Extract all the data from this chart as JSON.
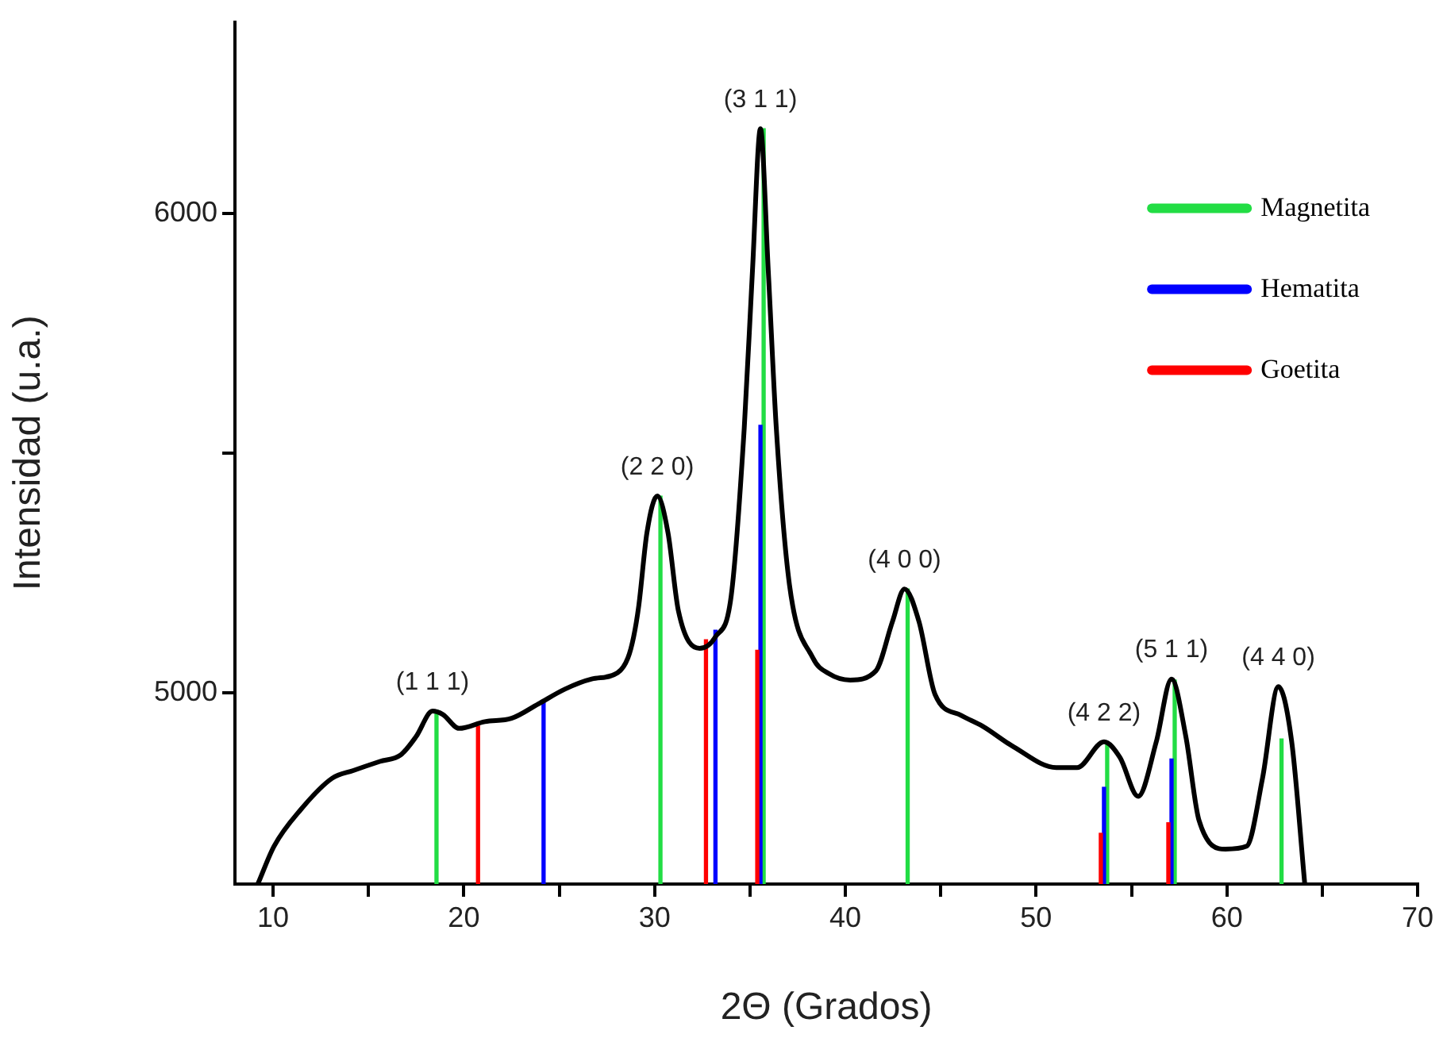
{
  "chart_data": {
    "type": "line",
    "xlabel": "2Θ (Grados)",
    "ylabel": "Intensidad (u.a.)",
    "xlim": [
      8,
      70
    ],
    "xticks": [
      10,
      {
        "value": 15,
        "label": null
      },
      20,
      {
        "value": 25,
        "label": null
      },
      30,
      {
        "value": 35,
        "label": null
      },
      40,
      {
        "value": 45,
        "label": null
      },
      50,
      {
        "value": 55,
        "label": null
      },
      60,
      {
        "value": 65,
        "label": null
      },
      70
    ],
    "ylim": [
      4600,
      6400
    ],
    "yticks": [
      5000,
      {
        "value": 5500,
        "label": null
      },
      6000
    ],
    "grid": false,
    "legend": "top right",
    "marker": "none",
    "line_style": "solid",
    "series": [
      {
        "color": "#000000",
        "x": [
          9.22,
          10.05,
          11.44,
          13.1,
          14.2,
          15.6,
          16.7,
          17.5,
          18.36,
          18.9,
          19.75,
          21.1,
          22.5,
          23.9,
          25.3,
          26.7,
          28.06,
          28.6,
          28.9,
          29.17,
          29.6,
          30.14,
          30.7,
          31.25,
          32.36,
          33.19,
          34.02,
          34.7,
          35.13,
          35.55,
          35.96,
          36.38,
          37.07,
          38.3,
          39.15,
          40.26,
          41.6,
          42.47,
          43.1,
          43.86,
          44.7,
          46.08,
          47.18,
          48.84,
          51.06,
          52.15,
          53.56,
          54.4,
          55.35,
          56.3,
          57.1,
          57.85,
          58.54,
          59.93,
          61.04,
          61.87,
          62.7,
          63.4,
          64.08
        ],
        "values": [
          4602,
          4679,
          4755,
          4821,
          4837,
          4856,
          4870,
          4908,
          4961,
          4954,
          4925,
          4939,
          4946,
          4976,
          5007,
          5028,
          5041,
          5072,
          5116,
          5181,
          5334,
          5410,
          5334,
          5170,
          5092,
          5116,
          5203,
          5552,
          5880,
          6177,
          5880,
          5552,
          5225,
          5072,
          5039,
          5026,
          5045,
          5148,
          5216,
          5148,
          4996,
          4952,
          4930,
          4886,
          4843,
          4843,
          4897,
          4864,
          4783,
          4897,
          5028,
          4908,
          4733,
          4673,
          4679,
          4821,
          5012,
          4897,
          4602
        ]
      },
      {
        "type": "bar",
        "name": "Magnetita",
        "color": "#22dd44",
        "x": [
          18.4,
          30.14,
          35.55,
          43.1,
          53.56,
          57.1,
          62.7
        ],
        "values": [
          4963,
          5410,
          6177,
          5216,
          4892,
          5026,
          4903
        ]
      },
      {
        "type": "bar",
        "name": "Hematita",
        "color": "#0000ff",
        "x": [
          24.18,
          33.19,
          35.55,
          53.56,
          57.1
        ],
        "values": [
          4979,
          5130,
          5558,
          4802,
          4861
        ]
      },
      {
        "type": "bar",
        "name": "Goetita",
        "color": "#ff0000",
        "x": [
          20.91,
          32.86,
          35.55,
          53.56,
          57.1
        ],
        "values": [
          4930,
          5110,
          5088,
          4706,
          4728
        ]
      }
    ],
    "annotations": [
      {
        "text": "(1 1 1)",
        "x": 18.36,
        "y": 4961
      },
      {
        "text": "(2 2 0)",
        "x": 30.14,
        "y": 5410
      },
      {
        "text": "(3 1 1)",
        "x": 35.55,
        "y": 6177
      },
      {
        "text": "(4 0 0)",
        "x": 43.1,
        "y": 5216
      },
      {
        "text": "(4 2 2)",
        "x": 53.56,
        "y": 4897
      },
      {
        "text": "(5 1 1)",
        "x": 57.1,
        "y": 5028
      },
      {
        "text": "(4 4 0)",
        "x": 62.7,
        "y": 5012
      }
    ]
  }
}
